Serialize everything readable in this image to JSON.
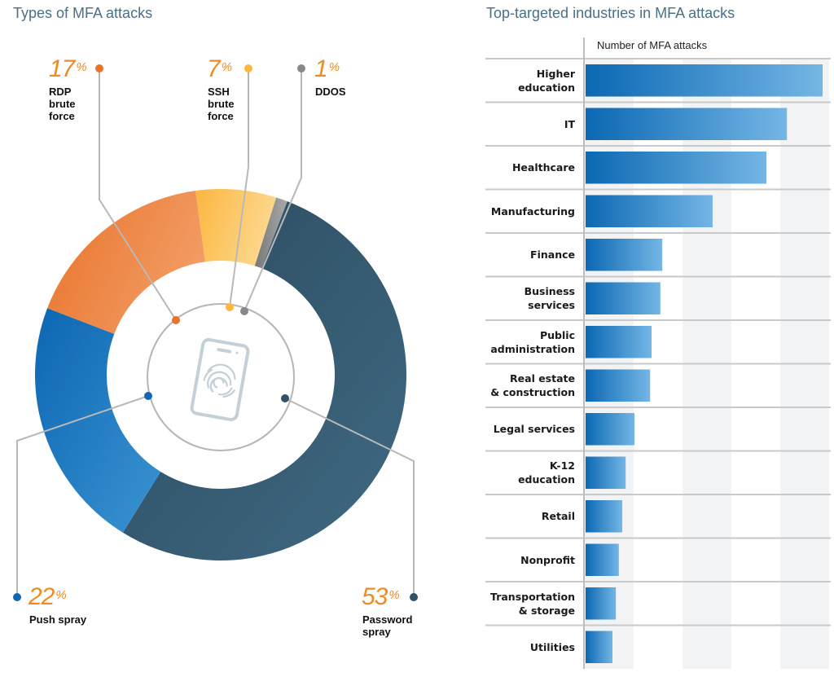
{
  "left_panel": {
    "title": "Types of MFA attacks",
    "icon": "phone-fingerprint-icon"
  },
  "right_panel": {
    "title": "Top-targeted industries in MFA attacks",
    "axis_title": "Number of MFA attacks"
  },
  "colors": {
    "rdp": "#e8732a",
    "ssh": "#fbb740",
    "ddos": "#888888",
    "password": "#2f5267",
    "push": "#1068b5",
    "bar": "#0f6cb6",
    "percent_text": "#f08a24",
    "title": "#4a6f87"
  },
  "chart_data": [
    {
      "type": "pie",
      "title": "Types of MFA attacks",
      "donut": true,
      "slices": [
        {
          "name": "Password spray",
          "label": "Password\nspray",
          "value": 53,
          "pct": "53",
          "unit": "%"
        },
        {
          "name": "Push spray",
          "label": "Push spray",
          "value": 22,
          "pct": "22",
          "unit": "%"
        },
        {
          "name": "RDP brute force",
          "label": "RDP\nbrute\nforce",
          "value": 17,
          "pct": "17",
          "unit": "%"
        },
        {
          "name": "SSH brute force",
          "label": "SSH\nbrute\nforce",
          "value": 7,
          "pct": "7",
          "unit": "%"
        },
        {
          "name": "DDOS",
          "label": "DDOS",
          "value": 1,
          "pct": "1",
          "unit": "%"
        }
      ]
    },
    {
      "type": "bar",
      "orientation": "horizontal",
      "title": "Top-targeted industries in MFA attacks",
      "xlabel": "Number of MFA attacks",
      "xlim": [
        0,
        5
      ],
      "units_note": "relative (no tick labels shown)",
      "categories": [
        "Higher\neducation",
        "IT",
        "Healthcare",
        "Manufacturing",
        "Finance",
        "Business\nservices",
        "Public\nadministration",
        "Real estate\n& construction",
        "Legal services",
        "K-12\neducation",
        "Retail",
        "Nonprofit",
        "Transportation\n& storage",
        "Utilities"
      ],
      "values": [
        4.85,
        4.12,
        3.7,
        2.6,
        1.57,
        1.53,
        1.35,
        1.32,
        1.0,
        0.82,
        0.75,
        0.68,
        0.62,
        0.55
      ]
    }
  ]
}
